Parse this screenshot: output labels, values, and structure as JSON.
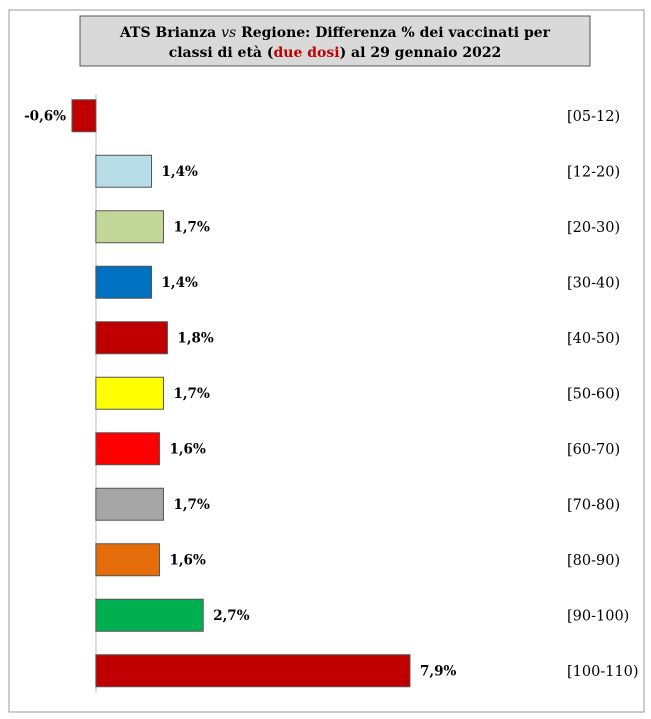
{
  "chart_data": {
    "type": "bar",
    "orientation": "horizontal",
    "title": [
      "ATS Brianza",
      "vs",
      "Regione: Differenza % dei vaccinati per",
      "classi di età (",
      "due dosi",
      ") al 29 gennaio 2022"
    ],
    "categories": [
      "[05-12)",
      "[12-20)",
      "[20-30)",
      "[30-40)",
      "[40-50)",
      "[50-60)",
      "[60-70)",
      "[70-80)",
      "[80-90)",
      "[90-100)",
      "[100-110)"
    ],
    "values": [
      -0.6,
      1.4,
      1.7,
      1.4,
      1.8,
      1.7,
      1.6,
      1.7,
      1.6,
      2.7,
      7.9
    ],
    "value_labels": [
      "-0,6%",
      "1,4%",
      "1,7%",
      "1,4%",
      "1,8%",
      "1,7%",
      "1,6%",
      "1,7%",
      "1,6%",
      "2,7%",
      "7,9%"
    ],
    "colors": [
      "#c00000",
      "#b7dde8",
      "#c4d79b",
      "#0070c0",
      "#c00000",
      "#ffff00",
      "#ff0000",
      "#a6a6a6",
      "#e46c0a",
      "#00b050",
      "#c00000"
    ],
    "xlim": [
      -0.6,
      7.9
    ]
  }
}
